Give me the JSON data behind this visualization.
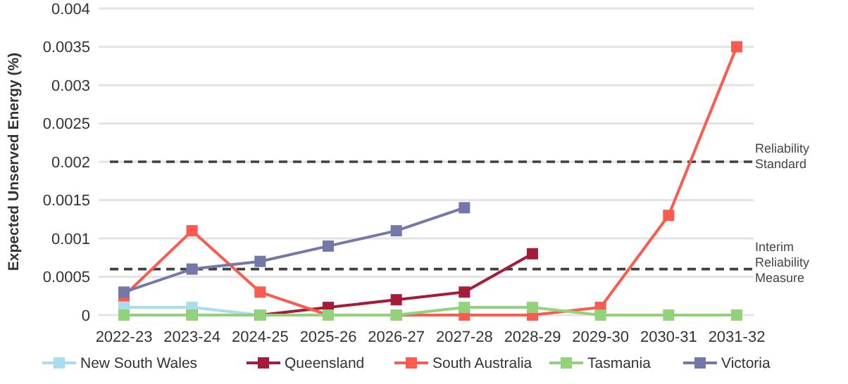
{
  "chart_data": {
    "type": "line",
    "ylabel": "Expected Unserved Energy (%)",
    "categories": [
      "2022-23",
      "2023-24",
      "2024-25",
      "2025-26",
      "2026-27",
      "2027-28",
      "2028-29",
      "2029-30",
      "2030-31",
      "2031-32"
    ],
    "series": [
      {
        "name": "New South Wales",
        "color": "#a9dcec",
        "values": [
          0.0001,
          0.0001,
          0,
          null,
          null,
          null,
          null,
          null,
          null,
          null
        ]
      },
      {
        "name": "Queensland",
        "color": "#a51c3a",
        "values": [
          0,
          0,
          0,
          0.0001,
          0.0002,
          0.0003,
          0.0008,
          null,
          null,
          null
        ]
      },
      {
        "name": "South Australia",
        "color": "#fb5a4f",
        "values": [
          0.00025,
          0.0011,
          0.0003,
          0,
          0,
          0,
          0,
          0.0001,
          0.0013,
          0.0035
        ]
      },
      {
        "name": "Tasmania",
        "color": "#92d27a",
        "values": [
          0,
          0,
          0,
          0,
          0,
          0.0001,
          0.0001,
          0,
          0,
          0
        ]
      },
      {
        "name": "Victoria",
        "color": "#7478a8",
        "values": [
          0.0003,
          0.0006,
          0.0007,
          0.0009,
          0.0011,
          0.0014,
          null,
          null,
          null,
          null
        ]
      }
    ],
    "ylim": [
      0,
      0.004
    ],
    "yticks": [
      0,
      0.0005,
      0.001,
      0.0015,
      0.002,
      0.0025,
      0.003,
      0.0035,
      0.004
    ],
    "ref_lines": [
      {
        "axis": "y",
        "value": 0.002,
        "label": "Reliability Standard",
        "color": "#404040",
        "line_style": "dashed"
      },
      {
        "axis": "y",
        "value": 0.0006,
        "label": "Interim Reliability Measure",
        "color": "#404040",
        "line_style": "dashed"
      }
    ],
    "grid": "y",
    "legend": "bottom",
    "marker": "square",
    "line_style": "solid"
  }
}
